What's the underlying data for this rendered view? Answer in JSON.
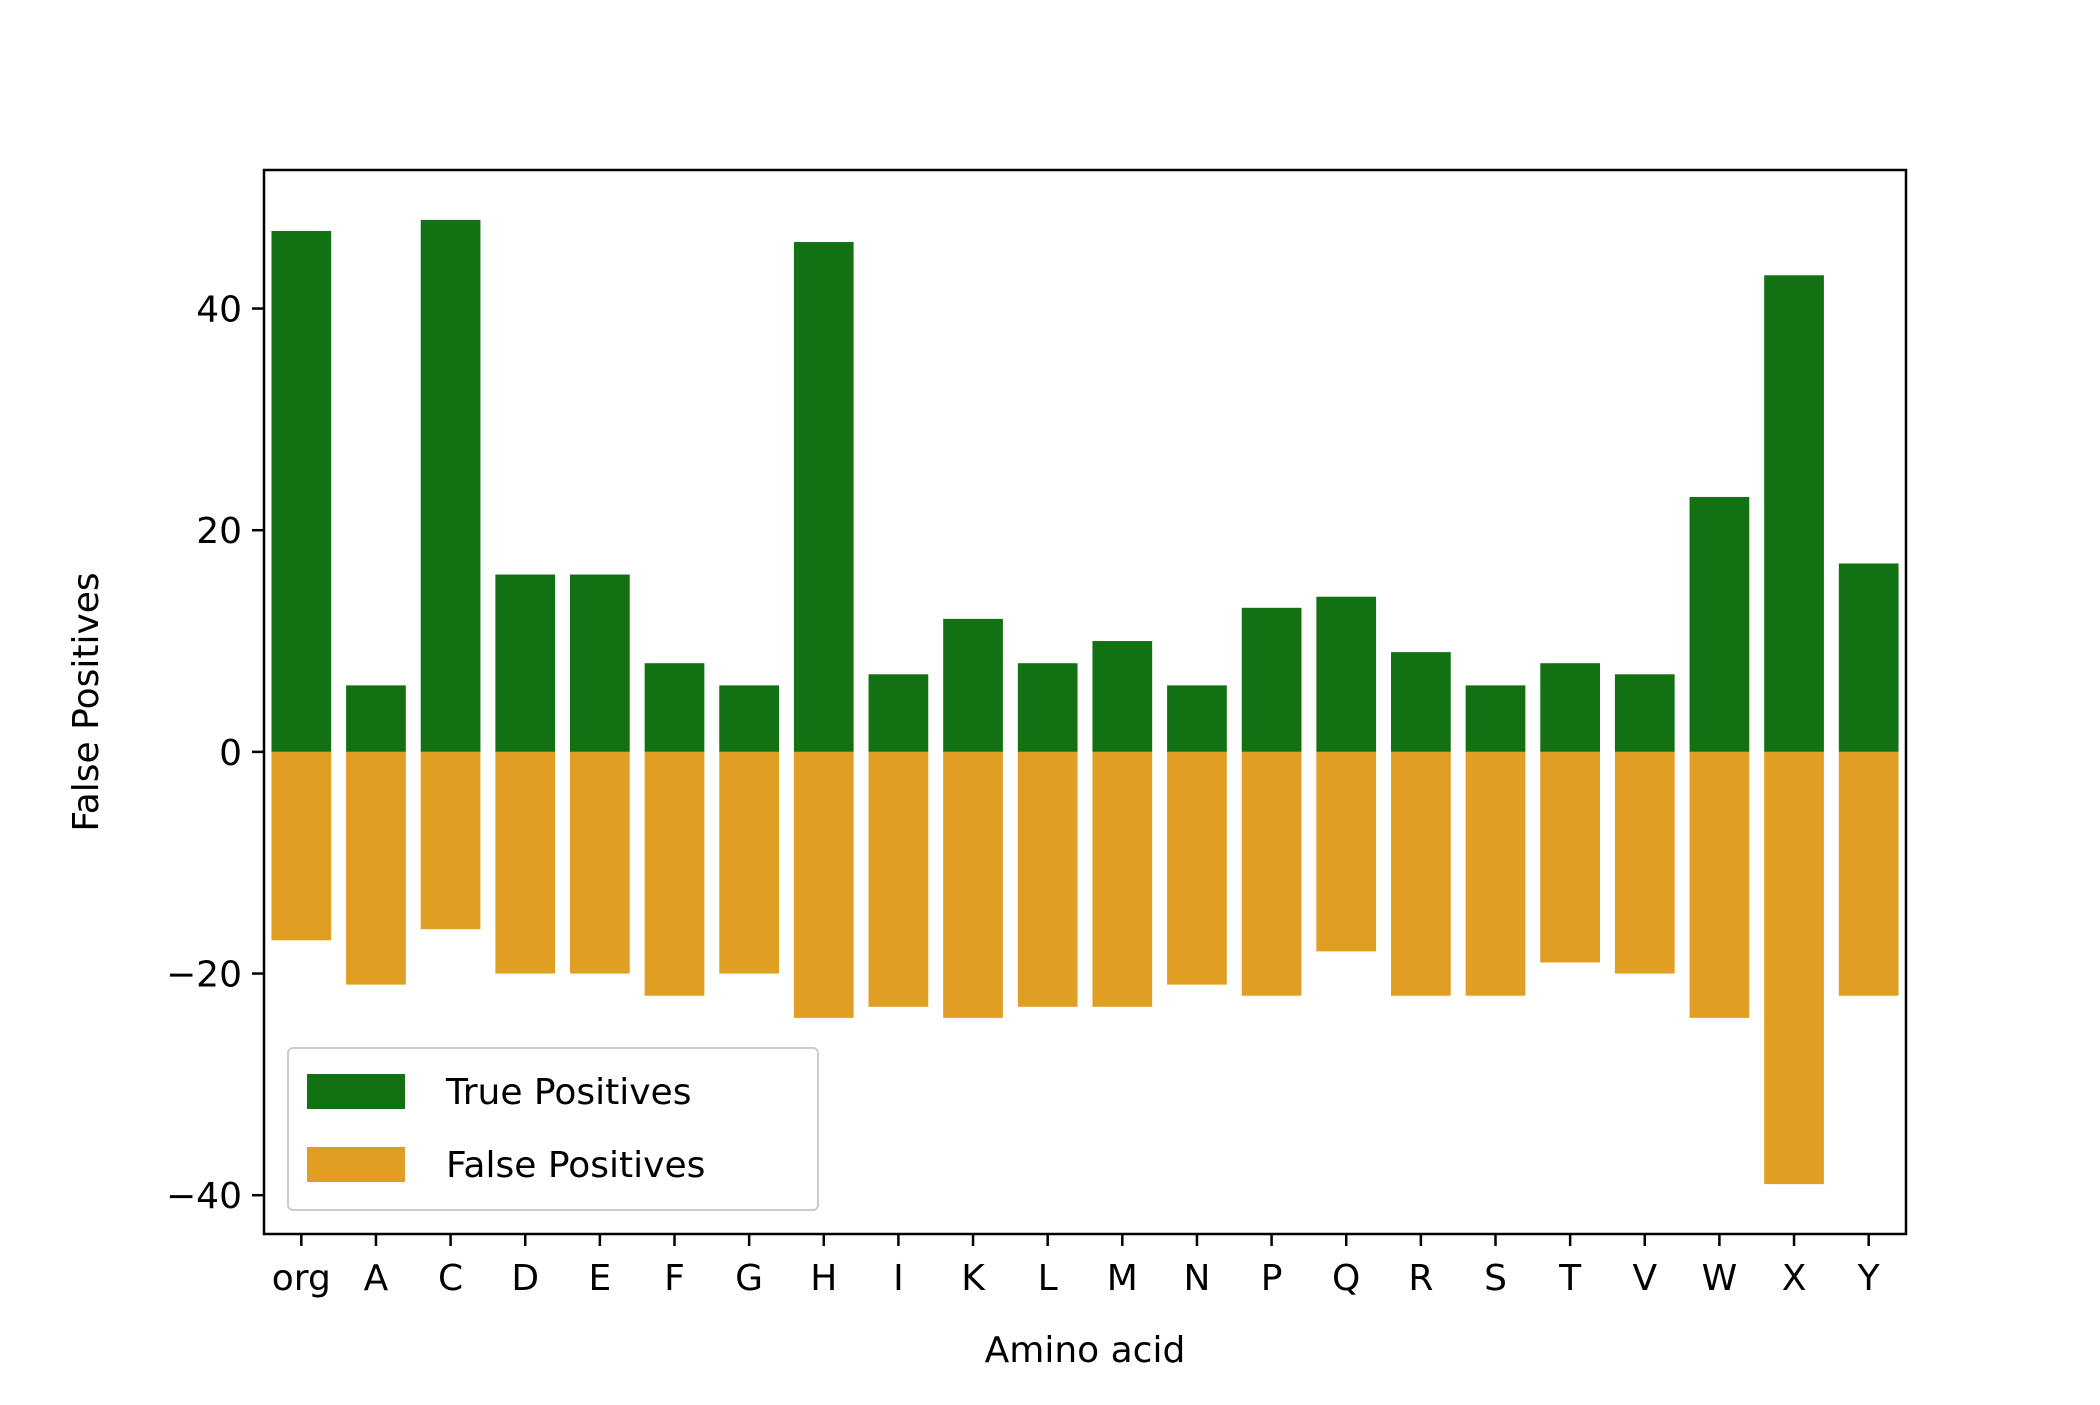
{
  "chart_data": {
    "type": "bar",
    "title": "",
    "xlabel": "Amino acid",
    "ylabel": "False Positives",
    "categories": [
      "org",
      "A",
      "C",
      "D",
      "E",
      "F",
      "G",
      "H",
      "I",
      "K",
      "L",
      "M",
      "N",
      "P",
      "Q",
      "R",
      "S",
      "T",
      "V",
      "W",
      "X",
      "Y"
    ],
    "series": [
      {
        "name": "True Positives",
        "color": "#127112",
        "values": [
          47,
          6,
          48,
          16,
          16,
          8,
          6,
          46,
          7,
          12,
          8,
          10,
          6,
          13,
          14,
          9,
          6,
          8,
          7,
          23,
          43,
          17
        ]
      },
      {
        "name": "False Positives",
        "color": "#E09E22",
        "values": [
          -17,
          -21,
          -16,
          -20,
          -20,
          -22,
          -20,
          -24,
          -23,
          -24,
          -23,
          -23,
          -21,
          -22,
          -18,
          -22,
          -22,
          -19,
          -20,
          -24,
          -39,
          -22
        ]
      }
    ],
    "ylim": [
      -43.5,
      52.5
    ],
    "yticks": [
      -40,
      -20,
      0,
      20,
      40
    ],
    "ytick_labels": [
      "−40",
      "−20",
      "0",
      "20",
      "40"
    ],
    "grid": false,
    "legend_position": "lower-left"
  }
}
